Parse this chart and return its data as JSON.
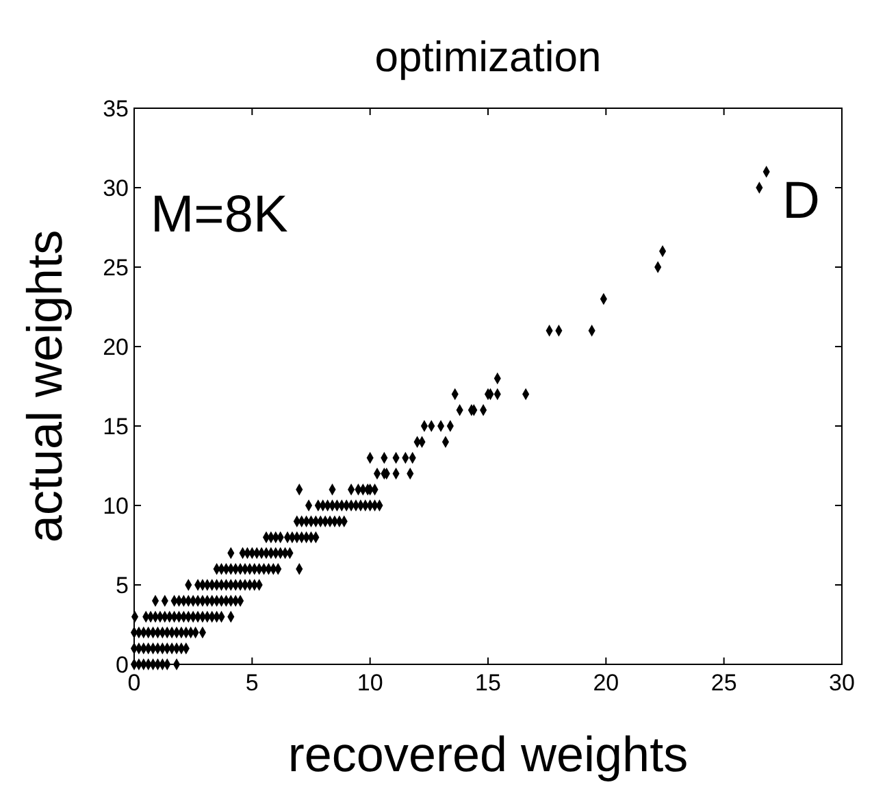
{
  "chart_data": {
    "type": "scatter",
    "title": "optimization",
    "xlabel": "recovered weights",
    "ylabel": "actual weights",
    "annotations": [
      "M=8K",
      "D"
    ],
    "xlim": [
      0,
      30
    ],
    "xticks": [
      0,
      5,
      10,
      15,
      20,
      25,
      30
    ],
    "ylim": [
      0,
      35
    ],
    "yticks": [
      0,
      5,
      10,
      15,
      20,
      25,
      30,
      35
    ],
    "grid": false,
    "marker": "diamond",
    "series": [
      {
        "color": "#000000",
        "x": [
          0,
          0.2,
          0.4,
          0.6,
          0.8,
          1,
          1.2,
          1.4,
          1.8,
          0,
          0.2,
          0.4,
          0.6,
          0.8,
          1,
          1.2,
          1.4,
          1.6,
          1.8,
          2,
          2.2,
          0,
          0.2,
          0.4,
          0.6,
          0.8,
          1,
          1.2,
          1.4,
          1.6,
          1.8,
          2,
          2.2,
          2.4,
          2.6,
          2.9,
          0.03,
          0.5,
          0.7,
          0.9,
          1.1,
          1.3,
          1.5,
          1.7,
          1.9,
          2.1,
          2.3,
          2.5,
          2.7,
          2.9,
          3.1,
          3.3,
          3.5,
          3.7,
          4.1,
          0.9,
          1.3,
          1.7,
          1.9,
          2.1,
          2.3,
          2.5,
          2.7,
          2.9,
          3.1,
          3.3,
          3.5,
          3.7,
          3.9,
          4.1,
          4.3,
          4.5,
          2.3,
          2.7,
          2.9,
          3.1,
          3.3,
          3.5,
          3.7,
          3.9,
          4.1,
          4.3,
          4.5,
          4.7,
          4.9,
          5.1,
          5.3,
          3.5,
          3.7,
          3.9,
          4.1,
          4.3,
          4.5,
          4.7,
          4.9,
          5.1,
          5.3,
          5.5,
          5.7,
          5.9,
          6.1,
          7,
          4.1,
          4.6,
          4.8,
          5,
          5.2,
          5.4,
          5.6,
          5.8,
          6,
          6.2,
          6.4,
          6.6,
          5.6,
          5.8,
          6,
          6.2,
          6.5,
          6.7,
          6.9,
          7.1,
          7.3,
          7.5,
          7.7,
          6.9,
          7.1,
          7.3,
          7.5,
          7.7,
          7.9,
          8.1,
          8.3,
          8.5,
          8.7,
          8.9,
          7.4,
          7.8,
          8,
          8.2,
          8.4,
          8.6,
          8.8,
          9,
          9.2,
          9.4,
          9.6,
          9.8,
          10,
          10.2,
          10.4,
          7,
          8.4,
          9.2,
          9.5,
          9.7,
          9.9,
          10,
          10.2,
          10.3,
          10.6,
          10.7,
          11.1,
          11.7,
          10,
          10.6,
          11.1,
          11.5,
          11.8,
          12,
          12.2,
          13.2,
          12.3,
          12.6,
          13,
          13.4,
          13.8,
          14.3,
          14.4,
          14.8,
          13.6,
          15,
          15.1,
          15.4,
          16.6,
          15.4,
          17.6,
          18,
          19.4,
          19.9,
          22.2,
          22.4,
          26.5,
          26.8
        ],
        "values": [
          0,
          0,
          0,
          0,
          0,
          0,
          0,
          0,
          0,
          1,
          1,
          1,
          1,
          1,
          1,
          1,
          1,
          1,
          1,
          1,
          1,
          2,
          2,
          2,
          2,
          2,
          2,
          2,
          2,
          2,
          2,
          2,
          2,
          2,
          2,
          2,
          3,
          3,
          3,
          3,
          3,
          3,
          3,
          3,
          3,
          3,
          3,
          3,
          3,
          3,
          3,
          3,
          3,
          3,
          3,
          4,
          4,
          4,
          4,
          4,
          4,
          4,
          4,
          4,
          4,
          4,
          4,
          4,
          4,
          4,
          4,
          4,
          5,
          5,
          5,
          5,
          5,
          5,
          5,
          5,
          5,
          5,
          5,
          5,
          5,
          5,
          5,
          6,
          6,
          6,
          6,
          6,
          6,
          6,
          6,
          6,
          6,
          6,
          6,
          6,
          6,
          6,
          7,
          7,
          7,
          7,
          7,
          7,
          7,
          7,
          7,
          7,
          7,
          7,
          8,
          8,
          8,
          8,
          8,
          8,
          8,
          8,
          8,
          8,
          8,
          9,
          9,
          9,
          9,
          9,
          9,
          9,
          9,
          9,
          9,
          9,
          10,
          10,
          10,
          10,
          10,
          10,
          10,
          10,
          10,
          10,
          10,
          10,
          10,
          10,
          10,
          11,
          11,
          11,
          11,
          11,
          11,
          11,
          11,
          12,
          12,
          12,
          12,
          12,
          13,
          13,
          13,
          13,
          13,
          14,
          14,
          14,
          15,
          15,
          15,
          15,
          16,
          16,
          16,
          16,
          17,
          17,
          17,
          17,
          17,
          18,
          21,
          21,
          21,
          23,
          25,
          26,
          30,
          31
        ]
      }
    ]
  }
}
